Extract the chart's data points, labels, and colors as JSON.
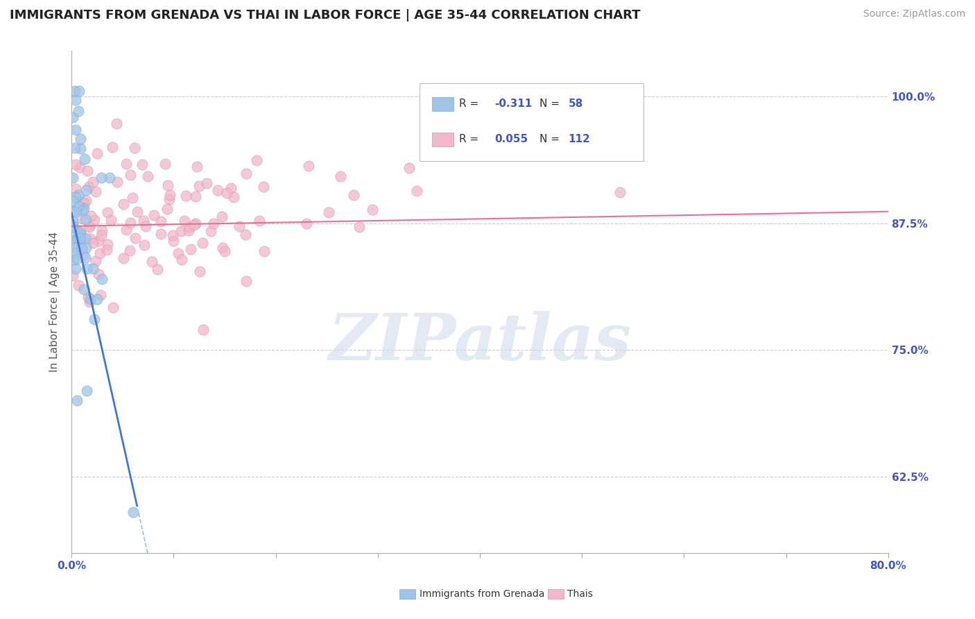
{
  "title": "IMMIGRANTS FROM GRENADA VS THAI IN LABOR FORCE | AGE 35-44 CORRELATION CHART",
  "source_text": "Source: ZipAtlas.com",
  "ylabel": "In Labor Force | Age 35-44",
  "xlim": [
    0.0,
    0.8
  ],
  "ylim": [
    0.55,
    1.045
  ],
  "xticks": [
    0.0,
    0.1,
    0.2,
    0.3,
    0.4,
    0.5,
    0.6,
    0.7,
    0.8
  ],
  "xticklabels": [
    "0.0%",
    "",
    "",
    "",
    "",
    "",
    "",
    "",
    "80.0%"
  ],
  "yticks": [
    0.625,
    0.75,
    0.875,
    1.0
  ],
  "yticklabels": [
    "62.5%",
    "75.0%",
    "87.5%",
    "100.0%"
  ],
  "grenada_color": "#a0c4e8",
  "grenada_edge_color": "#7aaad0",
  "thai_color": "#f0b8c8",
  "thai_edge_color": "#e090a8",
  "grenada_R": -0.311,
  "grenada_N": 58,
  "thai_R": 0.055,
  "thai_N": 112,
  "watermark_text": "ZIPatlas",
  "background_color": "#ffffff",
  "tick_color": "#4455bb",
  "grid_color": "#cccccc",
  "title_fontsize": 13,
  "axis_label_fontsize": 11,
  "tick_fontsize": 11,
  "source_fontsize": 10,
  "legend_text_color_R": "#4455bb",
  "legend_text_color_N": "#4455bb",
  "legend_text_color_label": "#333333",
  "grenada_trend_solid_color": "#4477cc",
  "grenada_trend_dash_color": "#99bbdd",
  "thai_trend_color": "#e87090"
}
